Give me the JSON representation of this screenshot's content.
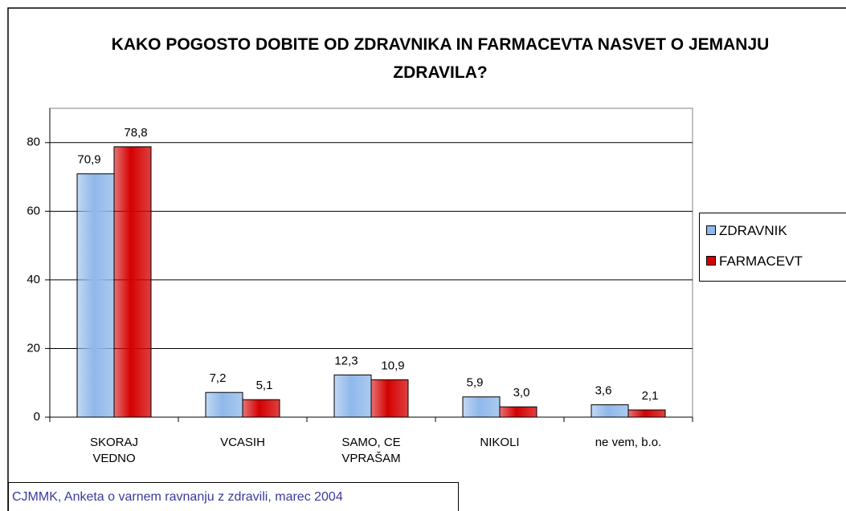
{
  "chart_data": {
    "type": "bar",
    "title": "KAKO POGOSTO DOBITE OD ZDRAVNIKA IN FARMACEVTA NASVET O JEMANJU ZDRAVILA?",
    "categories": [
      "SKORAJ VEDNO",
      "VCASIH",
      "SAMO, CE VPRAŠAM",
      "NIKOLI",
      "ne vem, b.o."
    ],
    "series": [
      {
        "name": "ZDRAVNIK",
        "color": "#8fb8ea",
        "values": [
          70.9,
          7.2,
          12.3,
          5.9,
          3.6
        ],
        "value_labels": [
          "70,9",
          "7,2",
          "12,3",
          "5,9",
          "3,6"
        ]
      },
      {
        "name": "FARMACEVT",
        "color": "#d40000",
        "values": [
          78.8,
          5.1,
          10.9,
          3.0,
          2.1
        ],
        "value_labels": [
          "78,8",
          "5,1",
          "10,9",
          "3,0",
          "2,1"
        ]
      }
    ],
    "ylim": [
      0,
      90
    ],
    "yticks": [
      0,
      20,
      40,
      60,
      80
    ],
    "grid": true,
    "legend": "right",
    "source": "CJMMK, Anketa o varnem ravnanju z zdravili, marec 2004"
  }
}
